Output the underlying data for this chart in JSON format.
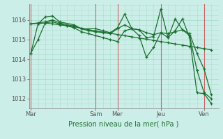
{
  "xlabel": "Pression niveau de la mer( hPa )",
  "bg_color": "#cceee8",
  "grid_color": "#aaddcc",
  "line_color": "#1a6e2e",
  "sep_color": "#cc6666",
  "ylim": [
    1011.5,
    1016.8
  ],
  "yticks": [
    1012,
    1013,
    1014,
    1015,
    1016
  ],
  "day_labels": [
    "Mar",
    "Sam",
    "Mer",
    "Jeu",
    "Ven"
  ],
  "day_positions": [
    0,
    36,
    48,
    72,
    96
  ],
  "xlim": [
    -1,
    104
  ],
  "series": [
    [
      0,
      1014.3,
      4,
      1015.8,
      8,
      1016.15,
      12,
      1016.2,
      16,
      1015.9,
      24,
      1015.75,
      28,
      1015.55,
      36,
      1015.55,
      40,
      1015.45,
      44,
      1015.35,
      48,
      1015.6,
      52,
      1016.3,
      56,
      1015.55,
      60,
      1015.5,
      64,
      1015.1,
      68,
      1015.15,
      72,
      1016.55,
      76,
      1015.1,
      80,
      1015.45,
      84,
      1016.05,
      88,
      1015.1,
      92,
      1012.3,
      96,
      1012.25,
      100,
      1011.75
    ],
    [
      0,
      1015.8,
      4,
      1015.85,
      8,
      1015.9,
      12,
      1016.0,
      16,
      1015.85,
      20,
      1015.75,
      24,
      1015.7,
      28,
      1015.55,
      32,
      1015.45,
      36,
      1015.4,
      40,
      1015.35,
      44,
      1015.3,
      48,
      1015.55,
      52,
      1015.75,
      56,
      1015.55,
      60,
      1015.5,
      64,
      1015.35,
      68,
      1015.25,
      72,
      1015.35,
      76,
      1015.3,
      80,
      1015.4,
      84,
      1015.5,
      88,
      1015.2,
      92,
      1013.45,
      96,
      1012.3,
      100,
      1012.0
    ],
    [
      0,
      1015.8,
      4,
      1015.82,
      8,
      1015.84,
      12,
      1015.8,
      16,
      1015.75,
      20,
      1015.7,
      24,
      1015.65,
      28,
      1015.58,
      32,
      1015.5,
      36,
      1015.44,
      40,
      1015.38,
      44,
      1015.32,
      48,
      1015.26,
      52,
      1015.2,
      56,
      1015.14,
      60,
      1015.08,
      64,
      1015.02,
      68,
      1014.96,
      72,
      1014.9,
      76,
      1014.84,
      80,
      1014.78,
      84,
      1014.72,
      88,
      1014.66,
      92,
      1014.6,
      96,
      1014.54,
      100,
      1014.48
    ],
    [
      0,
      1014.3,
      4,
      1015.0,
      8,
      1015.85,
      12,
      1015.9,
      16,
      1015.8,
      20,
      1015.7,
      24,
      1015.6,
      28,
      1015.4,
      32,
      1015.3,
      36,
      1015.2,
      40,
      1015.1,
      44,
      1015.0,
      48,
      1014.9,
      52,
      1015.45,
      56,
      1015.55,
      60,
      1015.2,
      64,
      1014.1,
      68,
      1014.6,
      72,
      1015.35,
      76,
      1015.1,
      80,
      1016.05,
      84,
      1015.5,
      88,
      1015.3,
      92,
      1014.3,
      96,
      1013.5,
      100,
      1012.2
    ]
  ]
}
